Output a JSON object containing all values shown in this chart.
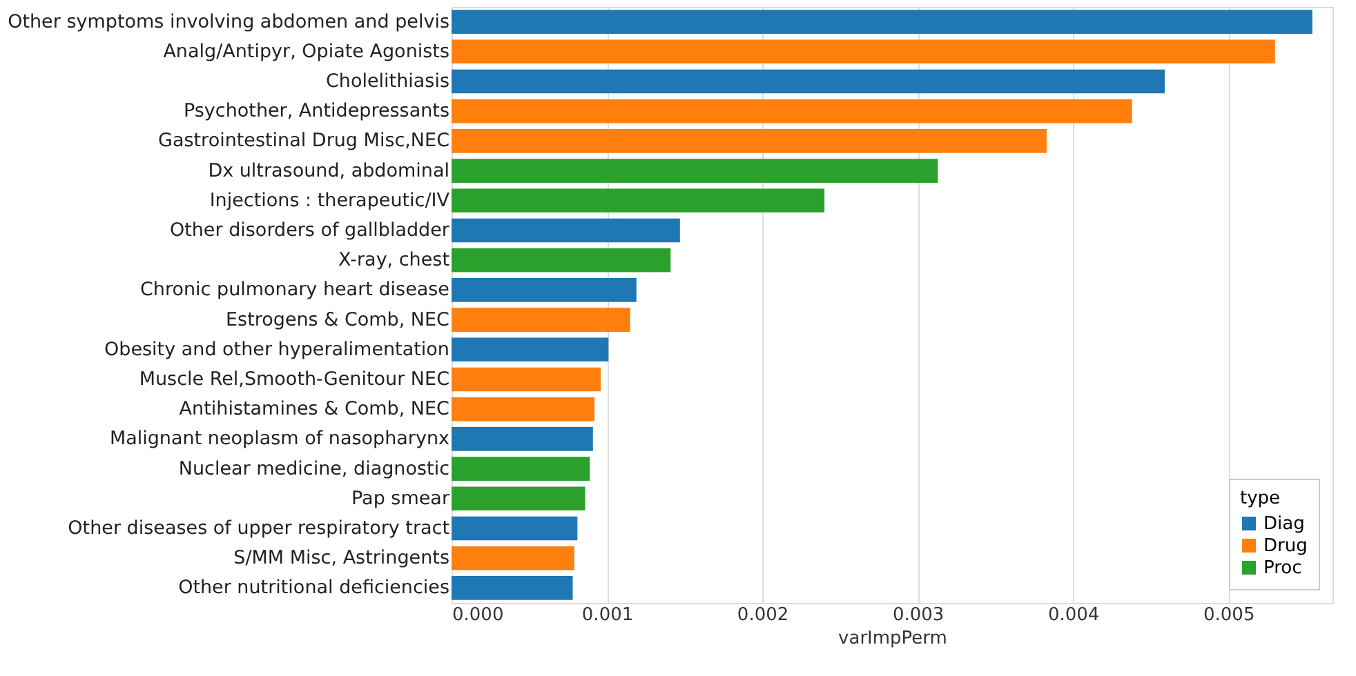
{
  "chart_data": {
    "type": "bar",
    "orientation": "horizontal",
    "xlabel": "varImpPerm",
    "legend_title": "type",
    "legend": "bottom right",
    "grid": "x",
    "categories": [
      "Other symptoms involving abdomen and pelvis",
      "Analg/Antipyr, Opiate Agonists",
      "Cholelithiasis",
      "Psychother, Antidepressants",
      "Gastrointestinal Drug Misc,NEC",
      "Dx ultrasound, abdominal",
      "Injections : therapeutic/IV",
      "Other disorders of gallbladder",
      "X-ray, chest",
      "Chronic pulmonary heart disease",
      "Estrogens & Comb, NEC",
      "Obesity and other hyperalimentation",
      "Muscle Rel,Smooth-Genitour NEC",
      "Antihistamines & Comb, NEC",
      "Malignant neoplasm of nasopharynx",
      "Nuclear medicine, diagnostic",
      "Pap smear",
      "Other diseases of upper respiratory tract",
      "S/MM Misc, Astringents",
      "Other nutritional deficiencies"
    ],
    "series": [
      {
        "name": "Diag",
        "color": "#1f77b4",
        "values": [
          0.00554,
          null,
          0.00459,
          null,
          null,
          null,
          null,
          0.00147,
          null,
          0.00119,
          null,
          0.00101,
          null,
          null,
          0.00091,
          null,
          null,
          0.00081,
          null,
          0.00078
        ]
      },
      {
        "name": "Drug",
        "color": "#ff7f0e",
        "values": [
          null,
          0.0053,
          null,
          0.00438,
          0.00383,
          null,
          null,
          null,
          null,
          null,
          0.00115,
          null,
          0.00096,
          0.00092,
          null,
          null,
          null,
          null,
          0.00079,
          null
        ]
      },
      {
        "name": "Proc",
        "color": "#2ca02c",
        "values": [
          null,
          null,
          null,
          null,
          null,
          0.00313,
          0.0024,
          null,
          0.00141,
          null,
          null,
          null,
          null,
          null,
          null,
          0.00089,
          0.00086,
          null,
          null,
          null
        ]
      }
    ],
    "xlim": [
      0,
      0.00567
    ],
    "xticks": [
      {
        "value": 0,
        "label": "0.000"
      },
      {
        "value": 0.001,
        "label": "0.001"
      },
      {
        "value": 0.002,
        "label": "0.002"
      },
      {
        "value": 0.003,
        "label": "0.003"
      },
      {
        "value": 0.004,
        "label": "0.004"
      },
      {
        "value": 0.005,
        "label": "0.005"
      }
    ]
  }
}
